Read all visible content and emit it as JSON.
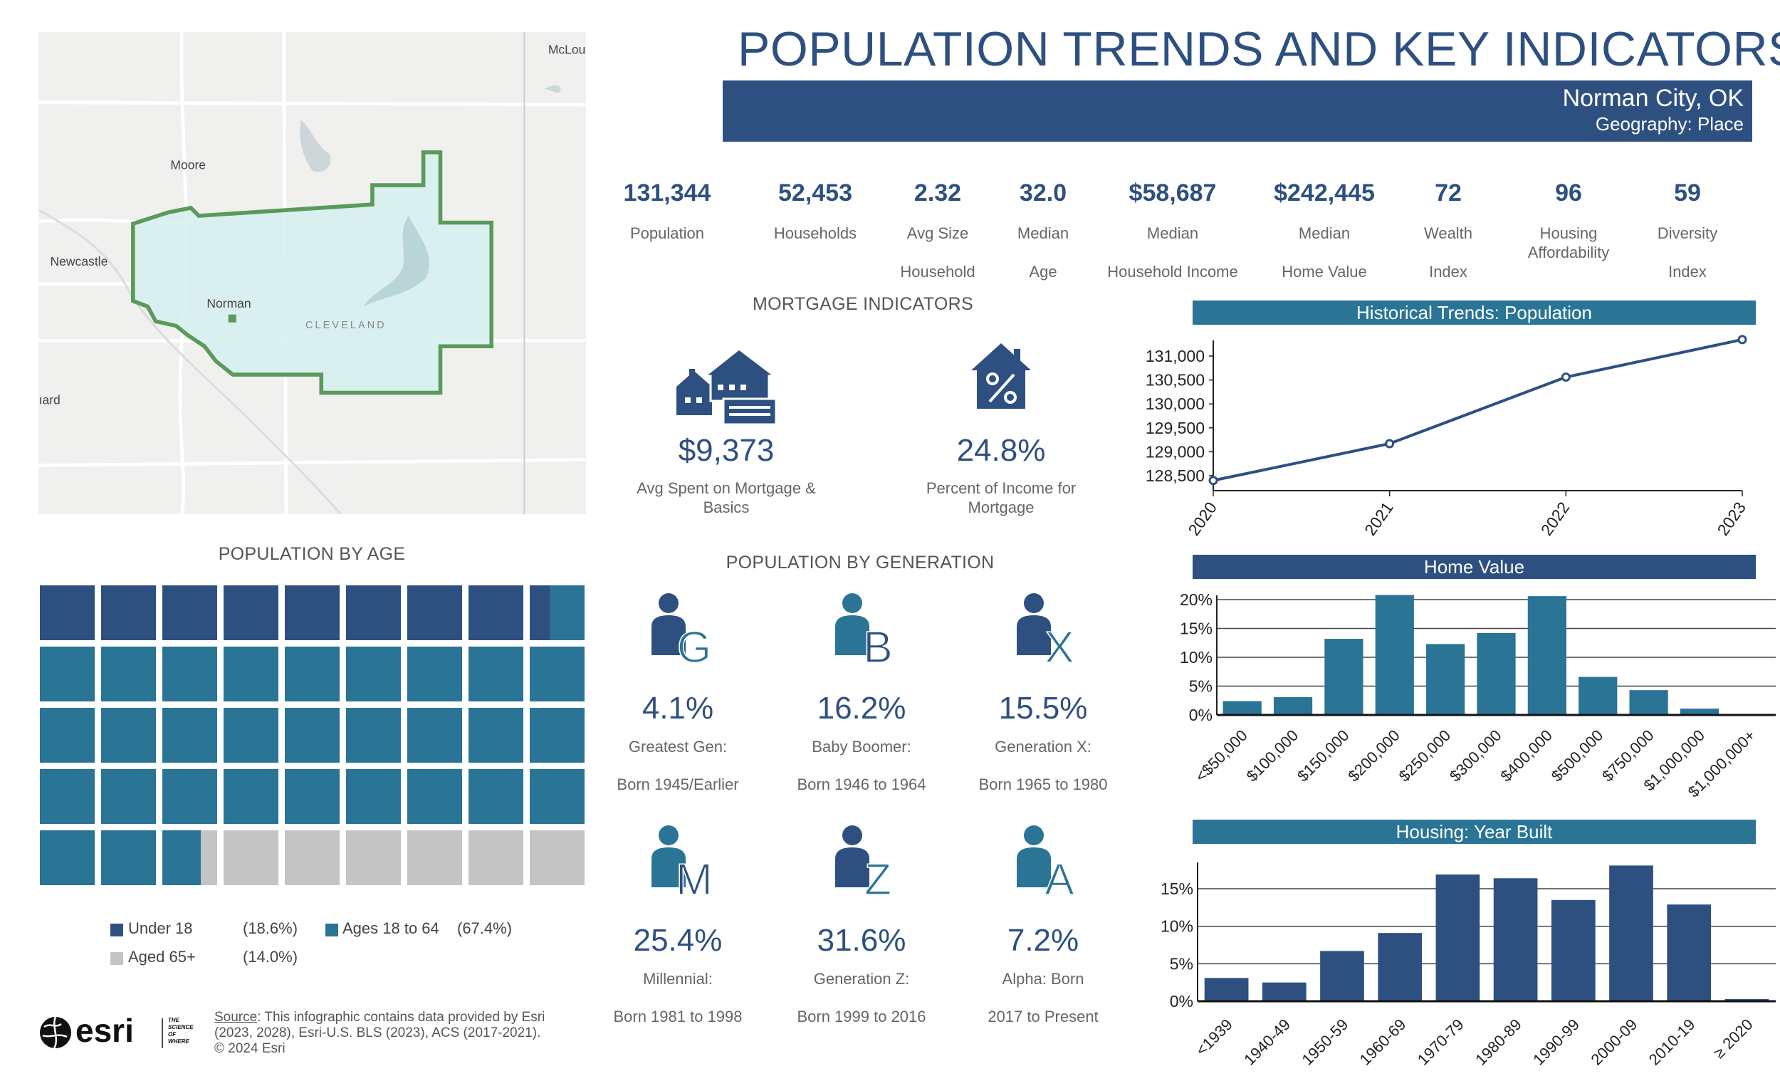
{
  "header": {
    "title": "POPULATION TRENDS AND KEY INDICATORS",
    "location": "Norman City, OK",
    "geography": "Geography: Place"
  },
  "map": {
    "labels": {
      "mclou": "McLou",
      "moore": "Moore",
      "newcastle": "Newcastle",
      "norman": "Norman",
      "cleveland": "CLEVELAND",
      "ard": "ıard"
    },
    "boundary_color": "#5a9a5a",
    "fill_color": "#d6f0f0"
  },
  "kpis": [
    {
      "value": "131,344",
      "line1": "Population",
      "line2": ""
    },
    {
      "value": "52,453",
      "line1": "Households",
      "line2": ""
    },
    {
      "value": "2.32",
      "line1": "Avg Size",
      "line2": "Household"
    },
    {
      "value": "32.0",
      "line1": "Median",
      "line2": "Age"
    },
    {
      "value": "$58,687",
      "line1": "Median",
      "line2": "Household Income"
    },
    {
      "value": "$242,445",
      "line1": "Median",
      "line2": "Home Value"
    },
    {
      "value": "72",
      "line1": "Wealth",
      "line2": "Index"
    },
    {
      "value": "96",
      "line1": "Housing",
      "line2": "Affordability"
    },
    {
      "value": "59",
      "line1": "Diversity",
      "line2": "Index"
    }
  ],
  "mortgage": {
    "title": "MORTGAGE INDICATORS",
    "items": [
      {
        "icon": "houses-money-icon",
        "value": "$9,373",
        "line1": "Avg Spent on Mortgage &",
        "line2": "Basics"
      },
      {
        "icon": "house-percent-icon",
        "value": "24.8%",
        "line1": "Percent of Income for",
        "line2": "Mortgage"
      }
    ]
  },
  "generation": {
    "title": "POPULATION BY GENERATION",
    "items": [
      {
        "letter": "G",
        "value": "4.1%",
        "label": "Greatest Gen:",
        "born": "Born 1945/Earlier",
        "color": "#2d5080",
        "letter_color": "#2a7496"
      },
      {
        "letter": "B",
        "value": "16.2%",
        "label": "Baby Boomer:",
        "born": "Born 1946 to 1964",
        "color": "#2a7496",
        "letter_color": "#2d5080"
      },
      {
        "letter": "X",
        "value": "15.5%",
        "label": "Generation X:",
        "born": "Born 1965 to 1980",
        "color": "#2d5080",
        "letter_color": "#2a7496"
      },
      {
        "letter": "M",
        "value": "25.4%",
        "label": "Millennial:",
        "born": "Born 1981 to 1998",
        "color": "#2a7496",
        "letter_color": "#2d5080"
      },
      {
        "letter": "Z",
        "value": "31.6%",
        "label": "Generation Z:",
        "born": "Born 1999 to 2016",
        "color": "#2d5080",
        "letter_color": "#2a7496"
      },
      {
        "letter": "A",
        "value": "7.2%",
        "label": "Alpha:  Born",
        "born": "2017 to Present",
        "color": "#2a7496",
        "letter_color": "#2a7496"
      }
    ]
  },
  "age": {
    "title": "POPULATION BY AGE",
    "groups": [
      {
        "name": "Under 18",
        "pct": 18.6,
        "pct_label": "(18.6%)",
        "color": "#2d5080"
      },
      {
        "name": "Ages 18 to 64",
        "pct": 67.4,
        "pct_label": "(67.4%)",
        "color": "#2a7496"
      },
      {
        "name": "Aged 65+",
        "pct": 14.0,
        "pct_label": "(14.0%)",
        "color": "#c4c4c4"
      }
    ]
  },
  "footer": {
    "source_label": "Source",
    "source_text": ": This infographic contains data provided by Esri",
    "line2": "(2023, 2028), Esri-U.S. BLS (2023), ACS (2017-2021).",
    "line3": "© 2024 Esri",
    "logo_text": "esri",
    "tagline": "THE SCIENCE OF WHERE"
  },
  "chart_data": [
    {
      "type": "line",
      "title": "Historical Trends: Population",
      "x": [
        "2020",
        "2021",
        "2022",
        "2023"
      ],
      "values": [
        128400,
        129170,
        130560,
        131344
      ],
      "yticks": [
        128500,
        129000,
        129500,
        130000,
        130500,
        131000
      ],
      "ytick_labels": [
        "128,500",
        "129,000",
        "129,500",
        "130,000",
        "130,500",
        "131,000"
      ],
      "color": "#2d5080",
      "header_color": "#2a7496"
    },
    {
      "type": "bar",
      "title": "Home Value",
      "categories": [
        "<$50,000",
        "$100,000",
        "$150,000",
        "$200,000",
        "$250,000",
        "$300,000",
        "$400,000",
        "$500,000",
        "$750,000",
        "$1,000,000",
        "$1,000,000+"
      ],
      "values": [
        2.4,
        3.1,
        13.2,
        20.8,
        12.3,
        14.2,
        20.6,
        6.6,
        4.3,
        1.1,
        0.1
      ],
      "ylim": [
        0,
        20
      ],
      "yticks": [
        0,
        5,
        10,
        15,
        20
      ],
      "ytick_labels": [
        "0%",
        "5%",
        "10%",
        "15%",
        "20%"
      ],
      "grid": true,
      "color": "#2a7496",
      "header_color": "#2d5080"
    },
    {
      "type": "bar",
      "title": "Housing: Year Built",
      "categories": [
        "<1939",
        "1940-49",
        "1950-59",
        "1960-69",
        "1970-79",
        "1980-89",
        "1990-99",
        "2000-09",
        "2010-19",
        "≥ 2020"
      ],
      "values": [
        3.1,
        2.5,
        6.7,
        9.1,
        16.9,
        16.4,
        13.5,
        18.1,
        12.9,
        0.3
      ],
      "ylim": [
        0,
        18.5
      ],
      "yticks": [
        0,
        5,
        10,
        15
      ],
      "ytick_labels": [
        "0%",
        "5%",
        "10%",
        "15%"
      ],
      "grid": true,
      "color": "#2d5080",
      "header_color": "#2a7496"
    }
  ]
}
